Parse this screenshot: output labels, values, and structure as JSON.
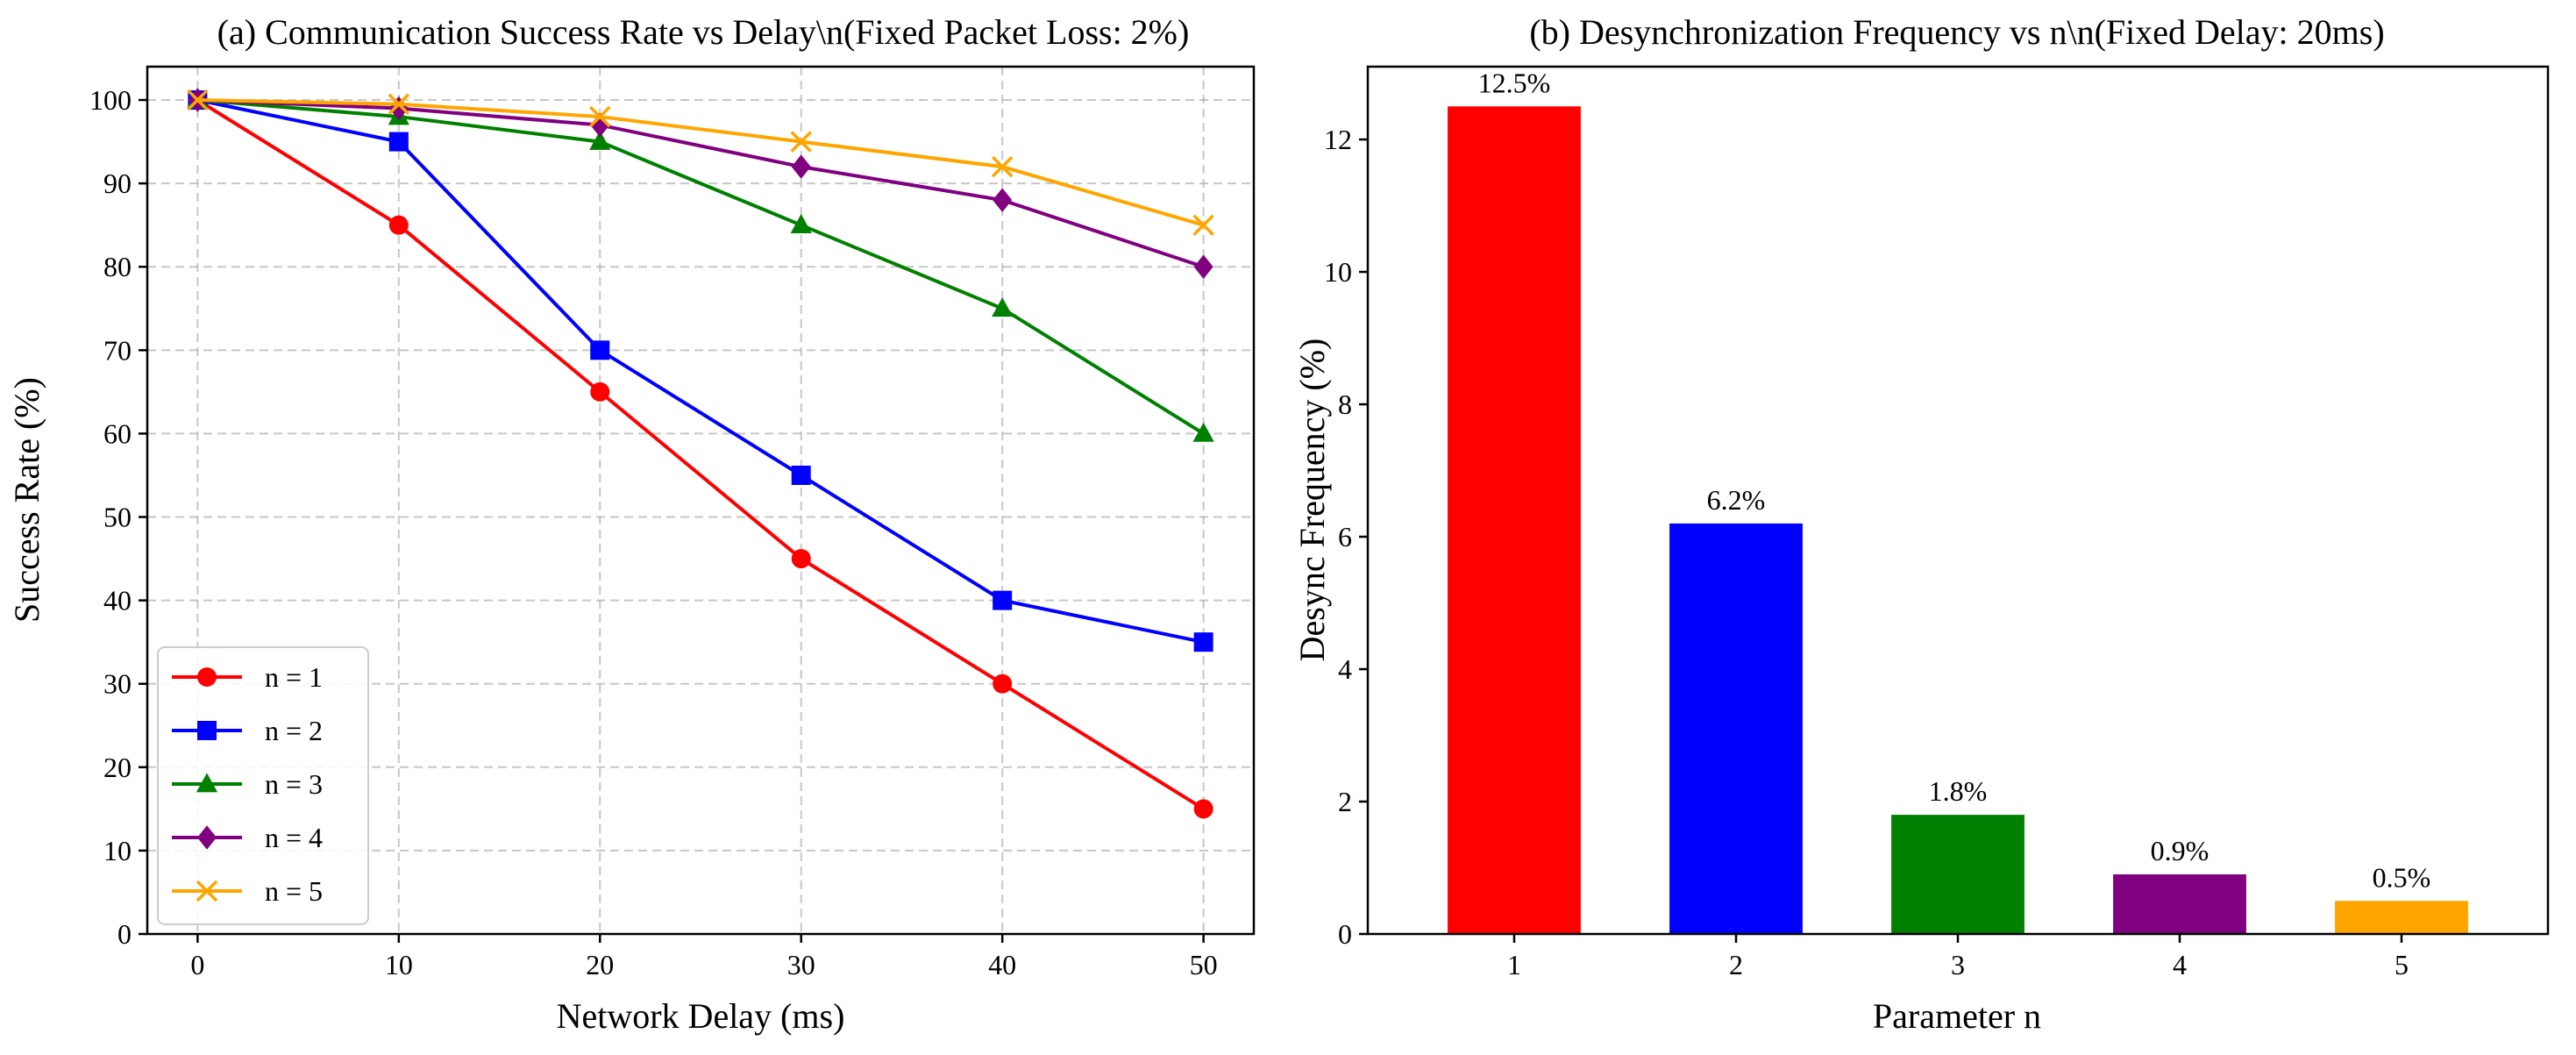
{
  "chart_data": [
    {
      "type": "line",
      "title": "(a) Communication Success Rate vs Delay\\n(Fixed Packet Loss: 2%)",
      "xlabel": "Network Delay (ms)",
      "ylabel": "Success Rate (%)",
      "x": [
        0,
        10,
        20,
        30,
        40,
        50
      ],
      "xticks": [
        0,
        10,
        20,
        30,
        40,
        50
      ],
      "yticks": [
        0,
        10,
        20,
        30,
        40,
        50,
        60,
        70,
        80,
        90,
        100
      ],
      "xlim": [
        -2.5,
        52.5
      ],
      "ylim": [
        0,
        104
      ],
      "grid": true,
      "legend_position": "lower-left",
      "series": [
        {
          "name": "n = 1",
          "color": "#ff0000",
          "marker": "circle",
          "values": [
            100,
            85,
            65,
            45,
            30,
            15
          ]
        },
        {
          "name": "n = 2",
          "color": "#0000ff",
          "marker": "square",
          "values": [
            100,
            95,
            70,
            55,
            40,
            35
          ]
        },
        {
          "name": "n = 3",
          "color": "#008000",
          "marker": "triangle",
          "values": [
            100,
            98,
            95,
            85,
            75,
            60
          ]
        },
        {
          "name": "n = 4",
          "color": "#800080",
          "marker": "diamond",
          "values": [
            100,
            99,
            97,
            92,
            88,
            80
          ]
        },
        {
          "name": "n = 5",
          "color": "#ffa500",
          "marker": "x",
          "values": [
            100,
            99.5,
            98,
            95,
            92,
            85
          ]
        }
      ]
    },
    {
      "type": "bar",
      "title": "(b) Desynchronization Frequency vs n\\n(Fixed Delay: 20ms)",
      "xlabel": "Parameter n",
      "ylabel": "Desync Frequency (%)",
      "categories": [
        "1",
        "2",
        "3",
        "4",
        "5"
      ],
      "values": [
        12.5,
        6.2,
        1.8,
        0.9,
        0.5
      ],
      "labels": [
        "12.5%",
        "6.2%",
        "1.8%",
        "0.9%",
        "0.5%"
      ],
      "colors": [
        "#ff0000",
        "#0000ff",
        "#008000",
        "#800080",
        "#ffa500"
      ],
      "yticks": [
        0,
        2,
        4,
        6,
        8,
        10,
        12
      ],
      "ylim": [
        0,
        13.1
      ],
      "grid": false
    }
  ]
}
